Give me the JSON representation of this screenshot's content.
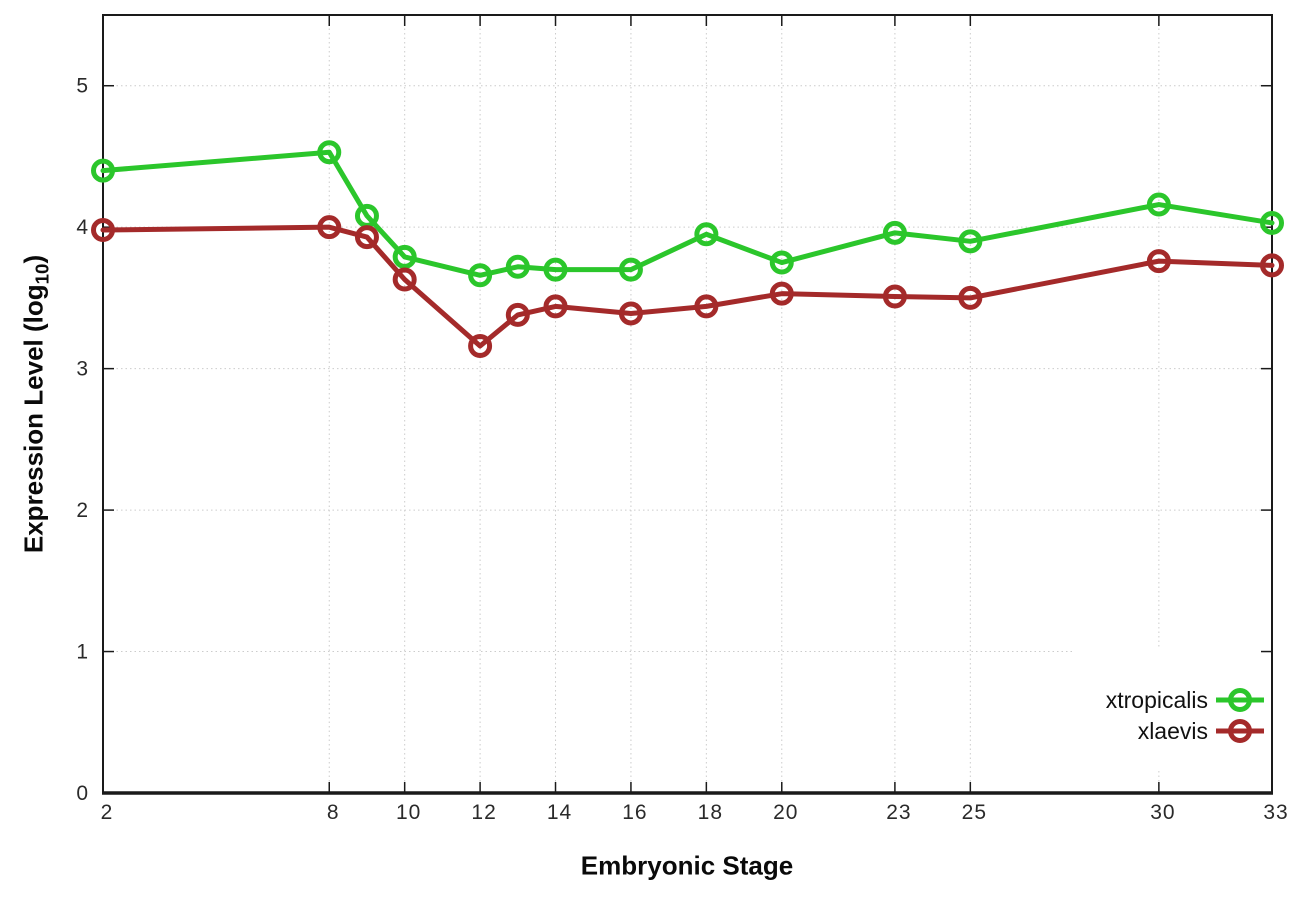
{
  "figure": {
    "background": "#ffffff",
    "frame_color": "#1a1a1a",
    "grid_color": "#cccccc",
    "xlabel": "Embryonic Stage",
    "ylabel": "Expression Level (log10)",
    "ylabel_pre": "Expression Level (log",
    "ylabel_sub": "10",
    "ylabel_post": ")"
  },
  "chart_data": {
    "type": "line",
    "title": "",
    "xlabel": "Embryonic Stage",
    "ylabel": "Expression Level (log10)",
    "x": [
      2,
      8,
      9,
      10,
      12,
      13,
      14,
      16,
      18,
      20,
      23,
      25,
      30,
      33
    ],
    "series": [
      {
        "name": "xtropicalis",
        "color": "#2bc62b",
        "marker": "open-circle",
        "values": [
          4.4,
          4.53,
          4.08,
          3.79,
          3.66,
          3.72,
          3.7,
          3.7,
          3.95,
          3.75,
          3.96,
          3.9,
          4.16,
          4.03
        ]
      },
      {
        "name": "xlaevis",
        "color": "#a42a2a",
        "marker": "open-circle",
        "values": [
          3.98,
          4.0,
          3.93,
          3.63,
          3.16,
          3.38,
          3.44,
          3.39,
          3.44,
          3.53,
          3.51,
          3.5,
          3.76,
          3.73
        ]
      }
    ],
    "xticks": [
      2,
      8,
      10,
      12,
      14,
      16,
      18,
      20,
      23,
      25,
      30,
      33
    ],
    "yticks": [
      0,
      1,
      2,
      3,
      4,
      5
    ],
    "xlim": [
      2,
      33
    ],
    "ylim": [
      0,
      5.5
    ],
    "grid": true,
    "grid_style": "dotted",
    "legend_position": "bottom-right",
    "legend_entries": [
      "xtropicalis",
      "xlaevis"
    ]
  }
}
